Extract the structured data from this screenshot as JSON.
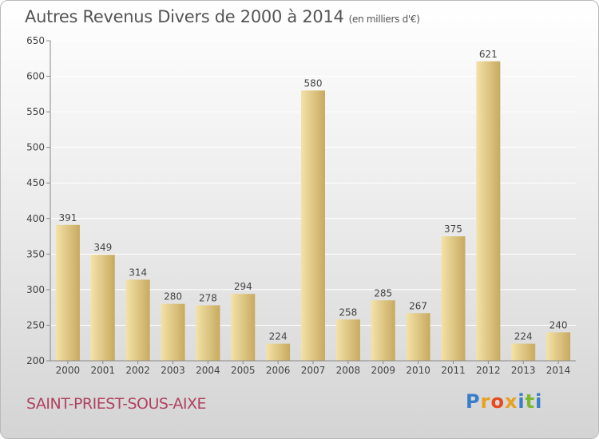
{
  "header": {
    "title": "Autres Revenus Divers de 2000 à 2014",
    "unit": "(en milliers d'€)"
  },
  "footer": {
    "commune": "SAINT-PRIEST-SOUS-AIXE",
    "brand": "Proxiti",
    "brand_colors": [
      "#3a7dc9",
      "#e8a020",
      "#e84a1a",
      "#e8a020",
      "#3a7dc9",
      "#7cb82f"
    ]
  },
  "colors": {
    "bar_light": "#f4e2a8",
    "bar_dark": "#c8aa60",
    "axis": "#888888",
    "text": "#444444",
    "grid": "#ffffff"
  },
  "chart_data": {
    "type": "bar",
    "title": "Autres Revenus Divers de 2000 à 2014",
    "categories": [
      "2000",
      "2001",
      "2002",
      "2003",
      "2004",
      "2005",
      "2006",
      "2007",
      "2008",
      "2009",
      "2010",
      "2011",
      "2012",
      "2013",
      "2014"
    ],
    "values": [
      391,
      349,
      314,
      280,
      278,
      294,
      224,
      580,
      258,
      285,
      267,
      375,
      621,
      224,
      240
    ],
    "ylim": [
      200,
      650
    ],
    "yticks": [
      200,
      250,
      300,
      350,
      400,
      450,
      500,
      550,
      600,
      650
    ],
    "grid": true
  }
}
